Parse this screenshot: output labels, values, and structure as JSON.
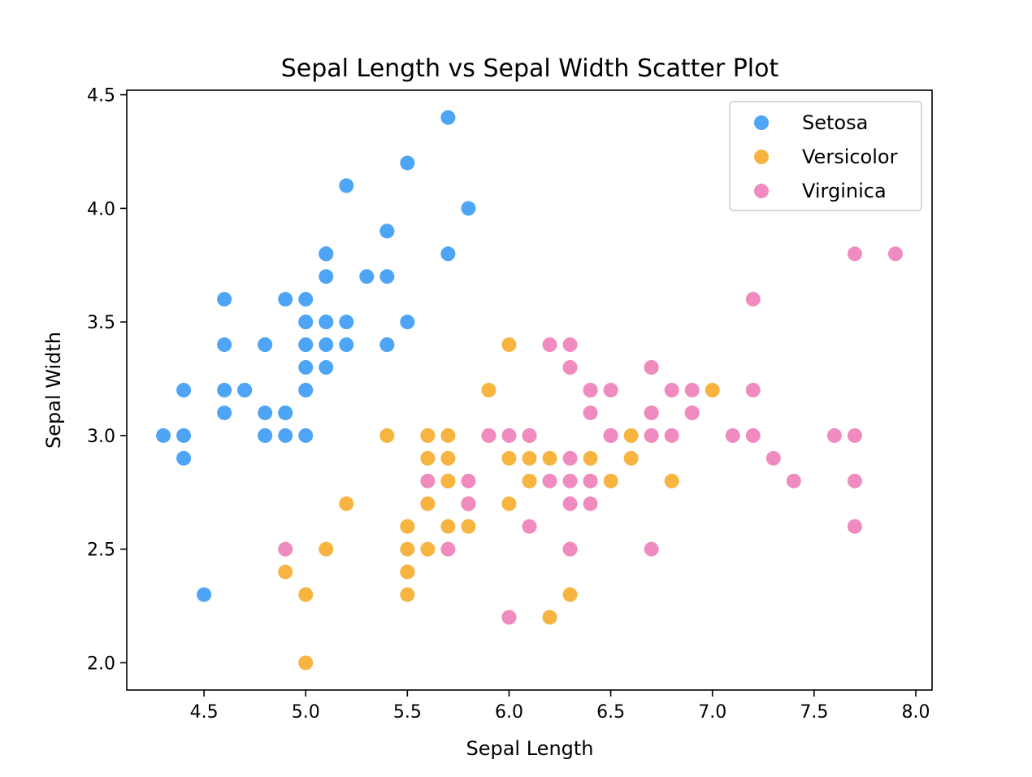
{
  "chart_data": {
    "type": "scatter",
    "title": "Sepal Length vs Sepal Width Scatter Plot",
    "xlabel": "Sepal Length",
    "ylabel": "Sepal Width",
    "xlim": [
      4.12,
      8.08
    ],
    "ylim": [
      1.88,
      4.52
    ],
    "xticks": [
      "4.5",
      "5.0",
      "5.5",
      "6.0",
      "6.5",
      "7.0",
      "7.5",
      "8.0"
    ],
    "yticks": [
      "2.0",
      "2.5",
      "3.0",
      "3.5",
      "4.0",
      "4.5"
    ],
    "grid": false,
    "legend_position": "top-right",
    "series": [
      {
        "name": "Setosa",
        "color": "#4ea5f5",
        "points": [
          [
            5.1,
            3.5
          ],
          [
            4.9,
            3.0
          ],
          [
            4.7,
            3.2
          ],
          [
            4.6,
            3.1
          ],
          [
            5.0,
            3.6
          ],
          [
            5.4,
            3.9
          ],
          [
            4.6,
            3.4
          ],
          [
            5.0,
            3.4
          ],
          [
            4.4,
            2.9
          ],
          [
            4.9,
            3.1
          ],
          [
            5.4,
            3.7
          ],
          [
            4.8,
            3.4
          ],
          [
            4.8,
            3.0
          ],
          [
            4.3,
            3.0
          ],
          [
            5.8,
            4.0
          ],
          [
            5.7,
            4.4
          ],
          [
            5.4,
            3.9
          ],
          [
            5.1,
            3.5
          ],
          [
            5.7,
            3.8
          ],
          [
            5.1,
            3.8
          ],
          [
            5.4,
            3.4
          ],
          [
            5.1,
            3.7
          ],
          [
            4.6,
            3.6
          ],
          [
            5.1,
            3.3
          ],
          [
            4.8,
            3.4
          ],
          [
            5.0,
            3.0
          ],
          [
            5.0,
            3.4
          ],
          [
            5.2,
            3.5
          ],
          [
            5.2,
            3.4
          ],
          [
            4.7,
            3.2
          ],
          [
            4.8,
            3.1
          ],
          [
            5.4,
            3.4
          ],
          [
            5.2,
            4.1
          ],
          [
            5.5,
            4.2
          ],
          [
            4.9,
            3.1
          ],
          [
            5.0,
            3.2
          ],
          [
            5.5,
            3.5
          ],
          [
            4.9,
            3.6
          ],
          [
            4.4,
            3.0
          ],
          [
            5.1,
            3.4
          ],
          [
            5.0,
            3.5
          ],
          [
            4.5,
            2.3
          ],
          [
            4.4,
            3.2
          ],
          [
            5.0,
            3.5
          ],
          [
            5.1,
            3.8
          ],
          [
            4.8,
            3.0
          ],
          [
            5.1,
            3.8
          ],
          [
            4.6,
            3.2
          ],
          [
            5.3,
            3.7
          ],
          [
            5.0,
            3.3
          ]
        ]
      },
      {
        "name": "Versicolor",
        "color": "#f7b440",
        "points": [
          [
            7.0,
            3.2
          ],
          [
            6.4,
            3.2
          ],
          [
            6.9,
            3.1
          ],
          [
            5.5,
            2.3
          ],
          [
            6.5,
            2.8
          ],
          [
            5.7,
            2.8
          ],
          [
            6.3,
            3.3
          ],
          [
            4.9,
            2.4
          ],
          [
            6.6,
            2.9
          ],
          [
            5.2,
            2.7
          ],
          [
            5.0,
            2.0
          ],
          [
            5.9,
            3.0
          ],
          [
            6.0,
            2.2
          ],
          [
            6.1,
            2.9
          ],
          [
            5.6,
            2.9
          ],
          [
            6.7,
            3.1
          ],
          [
            5.6,
            3.0
          ],
          [
            5.8,
            2.7
          ],
          [
            6.2,
            2.2
          ],
          [
            5.6,
            2.5
          ],
          [
            5.9,
            3.2
          ],
          [
            6.1,
            2.8
          ],
          [
            6.3,
            2.5
          ],
          [
            6.1,
            2.8
          ],
          [
            6.4,
            2.9
          ],
          [
            6.6,
            3.0
          ],
          [
            6.8,
            2.8
          ],
          [
            6.7,
            3.0
          ],
          [
            6.0,
            2.9
          ],
          [
            5.7,
            2.6
          ],
          [
            5.5,
            2.4
          ],
          [
            5.5,
            2.4
          ],
          [
            5.8,
            2.7
          ],
          [
            6.0,
            2.7
          ],
          [
            5.4,
            3.0
          ],
          [
            6.0,
            3.4
          ],
          [
            6.7,
            3.1
          ],
          [
            6.3,
            2.3
          ],
          [
            5.6,
            3.0
          ],
          [
            5.5,
            2.5
          ],
          [
            5.5,
            2.6
          ],
          [
            6.1,
            3.0
          ],
          [
            5.8,
            2.6
          ],
          [
            5.0,
            2.3
          ],
          [
            5.6,
            2.7
          ],
          [
            5.7,
            3.0
          ],
          [
            5.7,
            2.9
          ],
          [
            6.2,
            2.9
          ],
          [
            5.1,
            2.5
          ],
          [
            5.7,
            2.8
          ]
        ]
      },
      {
        "name": "Virginica",
        "color": "#f08bbf",
        "points": [
          [
            6.3,
            3.3
          ],
          [
            5.8,
            2.7
          ],
          [
            7.1,
            3.0
          ],
          [
            6.3,
            2.9
          ],
          [
            6.5,
            3.0
          ],
          [
            7.6,
            3.0
          ],
          [
            4.9,
            2.5
          ],
          [
            7.3,
            2.9
          ],
          [
            6.7,
            2.5
          ],
          [
            7.2,
            3.6
          ],
          [
            6.5,
            3.2
          ],
          [
            6.4,
            2.7
          ],
          [
            6.8,
            3.0
          ],
          [
            5.7,
            2.5
          ],
          [
            5.8,
            2.8
          ],
          [
            6.4,
            3.2
          ],
          [
            6.5,
            3.0
          ],
          [
            7.7,
            3.8
          ],
          [
            7.7,
            2.6
          ],
          [
            6.0,
            2.2
          ],
          [
            6.9,
            3.2
          ],
          [
            5.6,
            2.8
          ],
          [
            7.7,
            2.8
          ],
          [
            6.3,
            2.7
          ],
          [
            6.7,
            3.3
          ],
          [
            7.2,
            3.2
          ],
          [
            6.2,
            2.8
          ],
          [
            6.1,
            3.0
          ],
          [
            6.4,
            2.8
          ],
          [
            7.2,
            3.0
          ],
          [
            7.4,
            2.8
          ],
          [
            7.9,
            3.8
          ],
          [
            6.4,
            2.8
          ],
          [
            6.3,
            2.8
          ],
          [
            6.1,
            2.6
          ],
          [
            7.7,
            3.0
          ],
          [
            6.3,
            3.4
          ],
          [
            6.4,
            3.1
          ],
          [
            6.0,
            3.0
          ],
          [
            6.9,
            3.1
          ],
          [
            6.7,
            3.1
          ],
          [
            6.9,
            3.1
          ],
          [
            5.8,
            2.7
          ],
          [
            6.8,
            3.2
          ],
          [
            6.7,
            3.3
          ],
          [
            6.7,
            3.0
          ],
          [
            6.3,
            2.5
          ],
          [
            6.5,
            3.0
          ],
          [
            6.2,
            3.4
          ],
          [
            5.9,
            3.0
          ]
        ]
      }
    ]
  }
}
